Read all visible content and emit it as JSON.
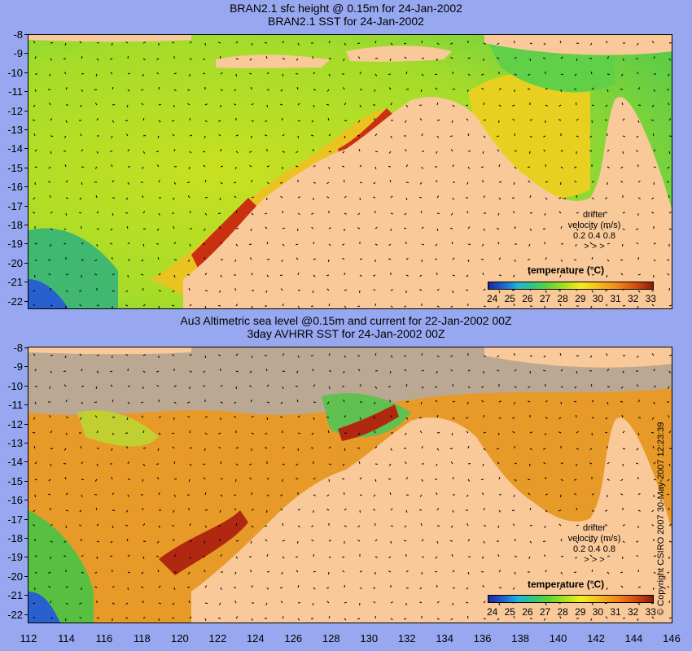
{
  "top": {
    "title1": "BRAN2.1 sfc height @ 0.15m for 24-Jan-2002",
    "title2": "BRAN2.1 SST for 24-Jan-2002"
  },
  "bottom": {
    "title1": "Au3 Altimetric sea level  @0.15m and current for 22-Jan-2002 00Z",
    "title2": "3day AVHRR SST for 24-Jan-2002 00Z"
  },
  "y_ticks": [
    "-8",
    "-9",
    "-10",
    "-11",
    "-12",
    "-13",
    "-14",
    "-15",
    "-16",
    "-17",
    "-18",
    "-19",
    "-20",
    "-21",
    "-22"
  ],
  "x_ticks": [
    "112",
    "114",
    "116",
    "118",
    "120",
    "122",
    "124",
    "126",
    "128",
    "130",
    "132",
    "134",
    "136",
    "138",
    "140",
    "142",
    "144",
    "146"
  ],
  "colorbar": {
    "title": "temperature (°C)",
    "labels": [
      "24",
      "25",
      "26",
      "27",
      "28",
      "29",
      "30",
      "31",
      "32",
      "33"
    ]
  },
  "drifter": {
    "line1": "drifter",
    "line2": "velocity (m/s)",
    "line3": "0.2  0.4  0.8",
    "line4": ">   >   >"
  },
  "copyright": "© Copyright CSIRO 2007   30-May-2007 12:23:39",
  "colors": {
    "land": "#f9c999",
    "missing": "#bba893",
    "background": "#98a8f0"
  }
}
